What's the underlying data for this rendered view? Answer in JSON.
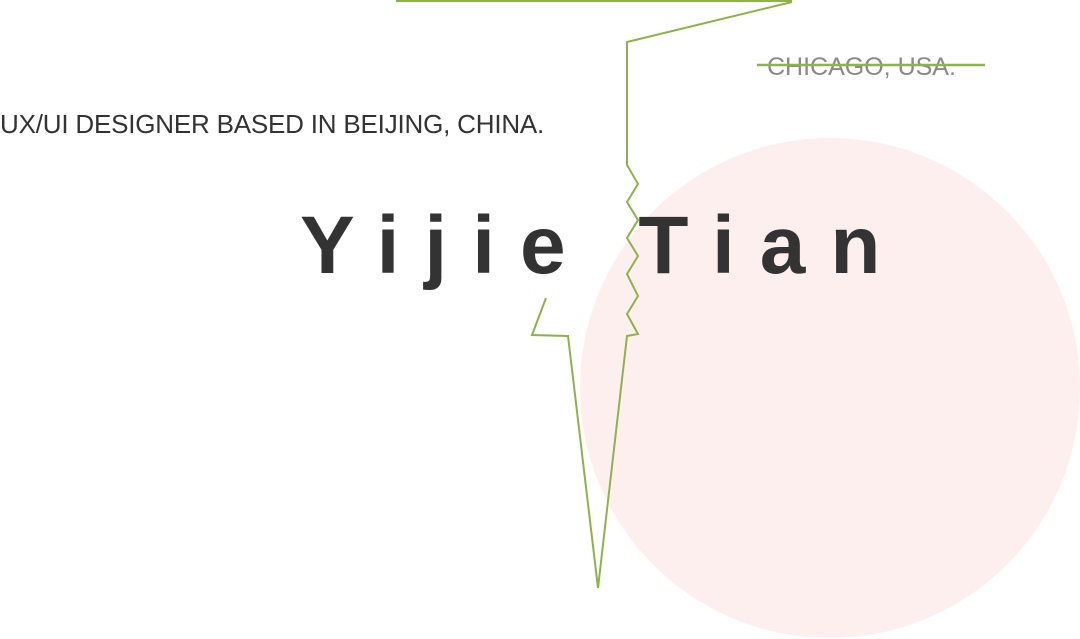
{
  "hero": {
    "tagline": "UX/UI DESIGNER BASED IN BEIJING, CHINA.",
    "old_location": "CHICAGO, USA.",
    "name": "Yijie Tian"
  },
  "colors": {
    "text": "#333333",
    "muted_text": "#8a8a8a",
    "accent_line": "#8db34a",
    "circle": "#fdefee",
    "background": "#ffffff"
  }
}
